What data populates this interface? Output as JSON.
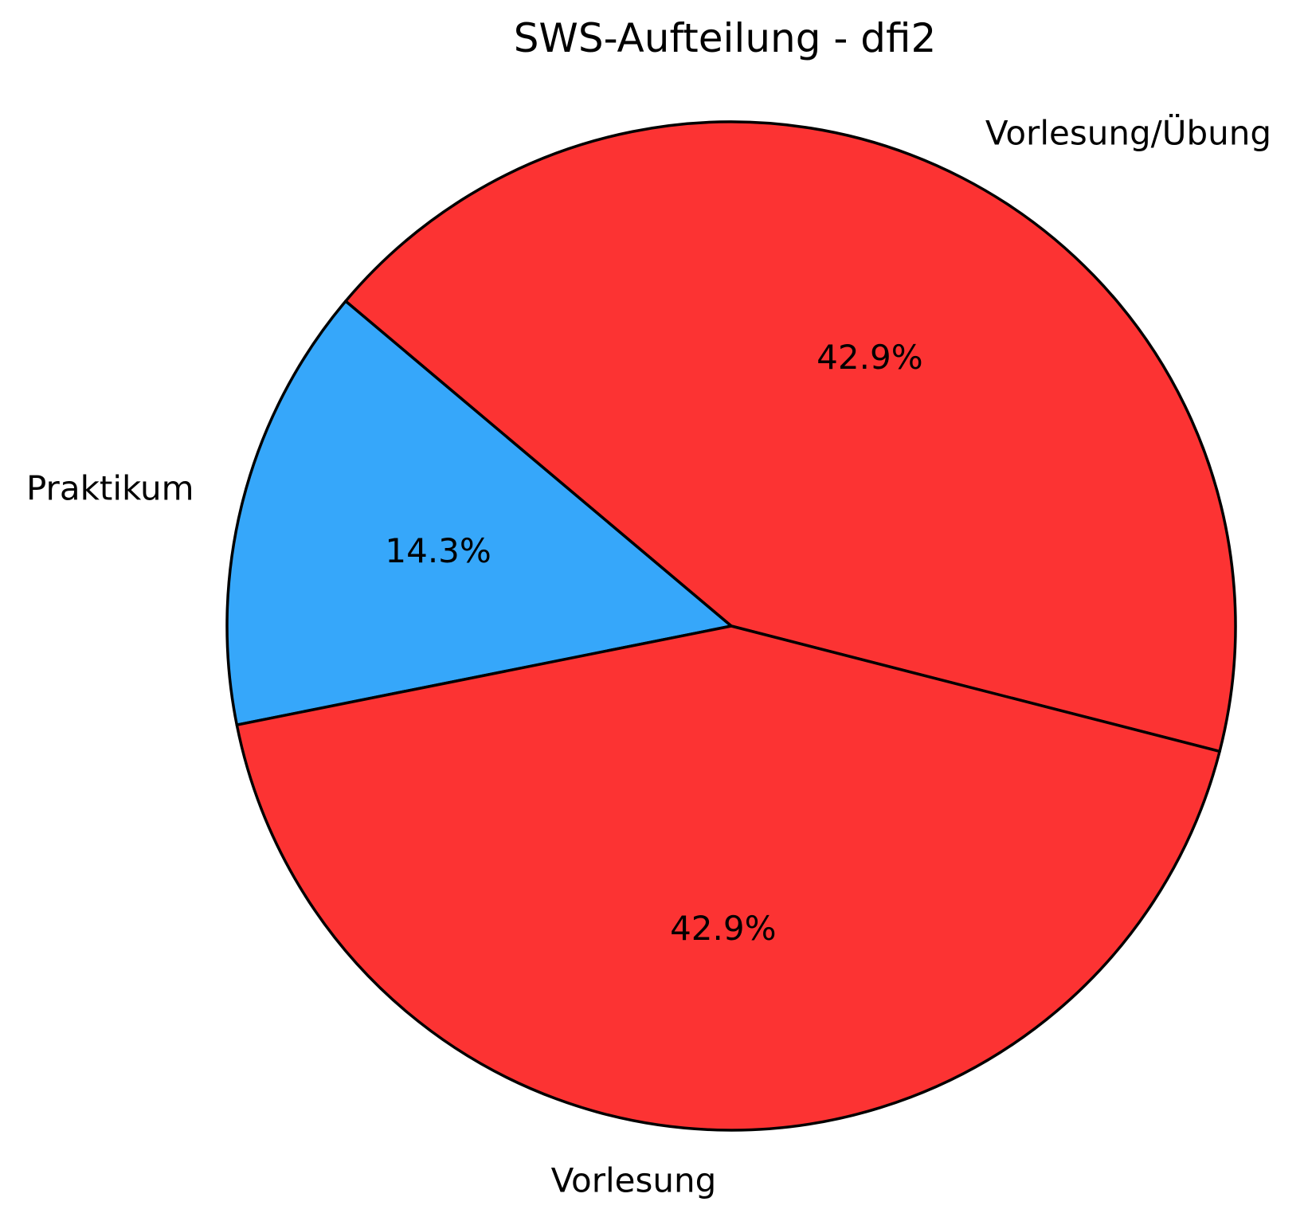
{
  "chart_data": {
    "type": "pie",
    "title": "SWS-Aufteilung - dfi2",
    "slices": [
      {
        "label": "Vorlesung/Übung",
        "value": 42.9,
        "pct_label": "42.9%",
        "color": "#fc3333"
      },
      {
        "label": "Praktikum",
        "value": 14.3,
        "pct_label": "14.3%",
        "color": "#36a7fa"
      },
      {
        "label": "Vorlesung",
        "value": 42.9,
        "pct_label": "42.9%",
        "color": "#fc3333"
      }
    ],
    "edge_color": "#000000",
    "background_color": "#ffffff",
    "text_color": "#000000",
    "start_angle_deg": -14.4,
    "counterclock": true,
    "pct_distance": 0.6,
    "label_distance": 1.1,
    "legend": "none"
  }
}
